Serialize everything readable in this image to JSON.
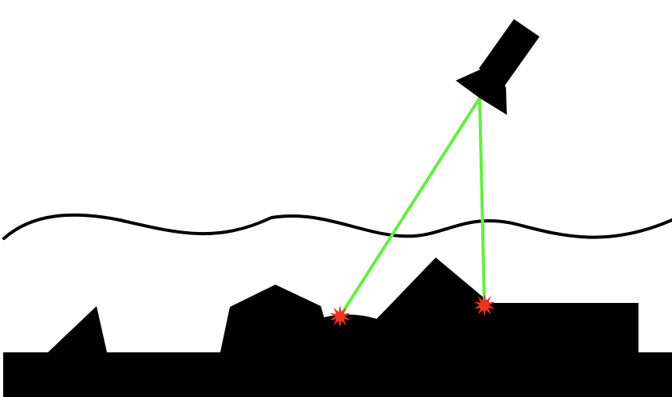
{
  "diagram": {
    "title": "",
    "colors": {
      "background": "#ffffff",
      "terrain": "#000000",
      "water_surface": "#000000",
      "scanner": "#000000",
      "laser_beam": "#66ee44",
      "impact_marker": "#ee3322"
    },
    "elements": [
      {
        "name": "scanner-device-icon",
        "label": ""
      },
      {
        "name": "water-surface-line",
        "label": ""
      },
      {
        "name": "seabed-terrain",
        "label": ""
      },
      {
        "name": "laser-beam-left",
        "label": ""
      },
      {
        "name": "laser-beam-right",
        "label": ""
      },
      {
        "name": "impact-marker-left",
        "label": ""
      },
      {
        "name": "impact-marker-right",
        "label": ""
      }
    ]
  }
}
